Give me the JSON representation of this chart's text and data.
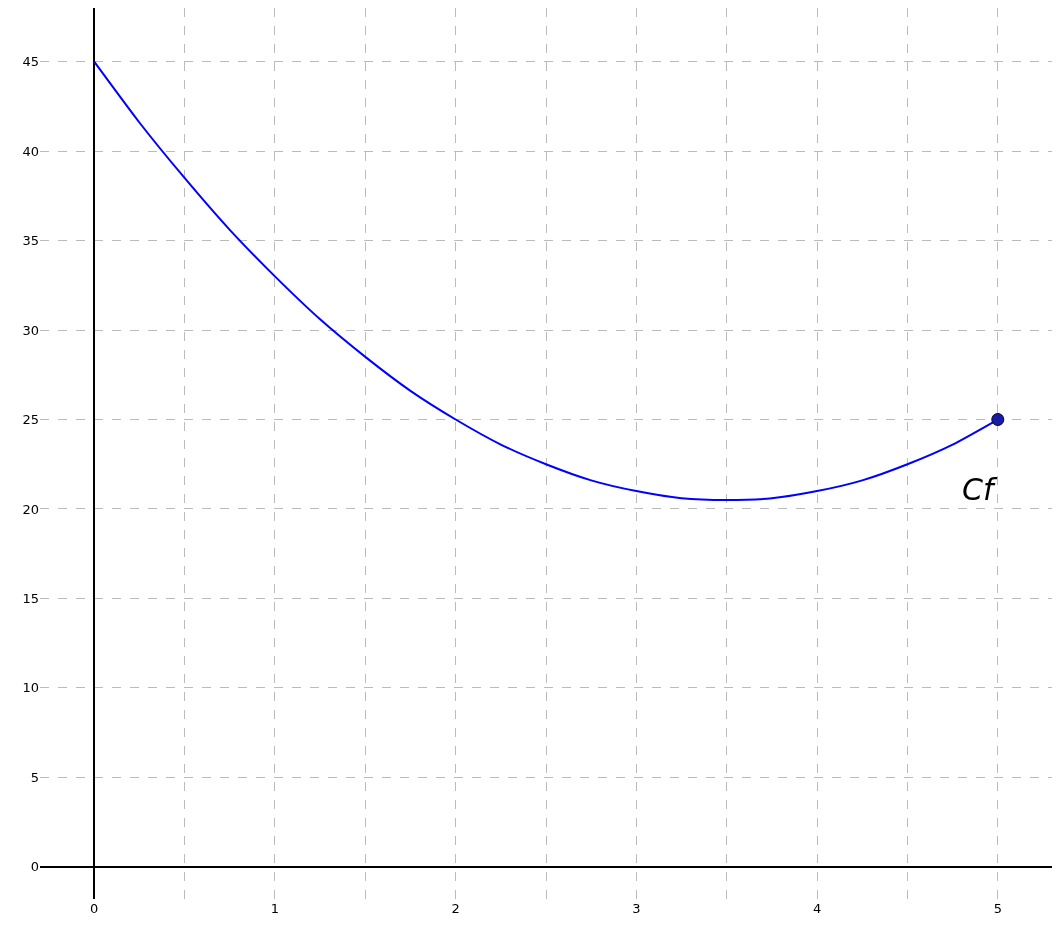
{
  "chart_data": {
    "type": "line",
    "x": [
      0,
      0.25,
      0.5,
      0.75,
      1,
      1.25,
      1.5,
      1.75,
      2,
      2.25,
      2.5,
      2.75,
      3,
      3.25,
      3.5,
      3.75,
      4,
      4.25,
      4.5,
      4.75,
      5
    ],
    "series": [
      {
        "name": "Cf",
        "color": "#0000ff",
        "marker": "none",
        "values": [
          45,
          41.6,
          38.5,
          35.6,
          33,
          30.6,
          28.5,
          26.6,
          25,
          23.6,
          22.5,
          21.6,
          21,
          20.6,
          20.5,
          20.6,
          21,
          21.6,
          22.5,
          23.6,
          25
        ]
      },
      {
        "type": "scatter",
        "color": "#1a1aa8",
        "marker": "circle",
        "x": [
          5
        ],
        "values": [
          25
        ]
      }
    ],
    "xlim": [
      -0.3,
      5.3
    ],
    "ylim": [
      -1.8,
      48
    ],
    "xticks": [
      0,
      {
        "value": 0.5,
        "label": null
      },
      1,
      {
        "value": 1.5,
        "label": null
      },
      2,
      {
        "value": 2.5,
        "label": null
      },
      3,
      {
        "value": 3.5,
        "label": null
      },
      4,
      {
        "value": 4.5,
        "label": null
      },
      5
    ],
    "yticks": [
      0,
      5,
      10,
      15,
      20,
      25,
      30,
      35,
      40,
      45
    ],
    "grid": true,
    "legend": false
  }
}
